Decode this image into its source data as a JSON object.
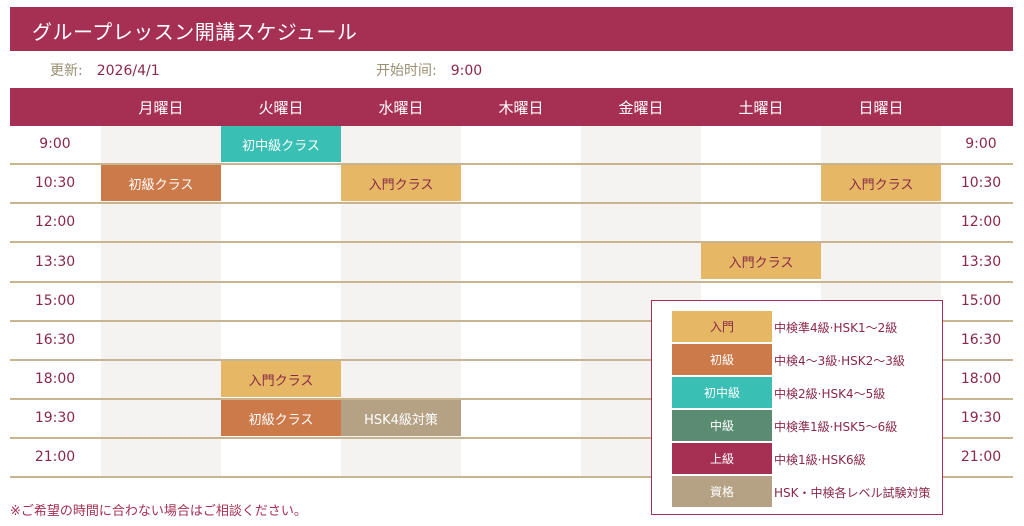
{
  "title": "グループレッスン開講スケジュール",
  "meta": {
    "updated_label": "更新:",
    "updated_value": "2026/4/1",
    "start_label": "开始时间:",
    "start_value": "9:00"
  },
  "days": [
    "月曜日",
    "火曜日",
    "水曜日",
    "木曜日",
    "金曜日",
    "土曜日",
    "日曜日"
  ],
  "times": [
    "9:00",
    "10:30",
    "12:00",
    "13:30",
    "15:00",
    "16:30",
    "18:00",
    "19:30",
    "21:00"
  ],
  "classes": {
    "tue_0900": "初中級クラス",
    "mon_1030": "初級クラス",
    "wed_1030": "入門クラス",
    "sun_1030": "入門クラス",
    "sat_1330": "入門クラス",
    "tue_1800": "入門クラス",
    "tue_1930": "初級クラス",
    "wed_1930": "HSK4級対策"
  },
  "legend": [
    {
      "label": "入門",
      "desc": "中検準4級·HSK1～2級",
      "color": "#e6b866"
    },
    {
      "label": "初級",
      "desc": "中検4～3級·HSK2～3級",
      "color": "#cc7a4a"
    },
    {
      "label": "初中級",
      "desc": "中検2級·HSK4～5級",
      "color": "#3abfb4"
    },
    {
      "label": "中級",
      "desc": "中検準1級·HSK5～6級",
      "color": "#5a8c72"
    },
    {
      "label": "上級",
      "desc": "中検1級·HSK6級",
      "color": "#a63054"
    },
    {
      "label": "資格",
      "desc": "HSK・中検各レベル試験対策",
      "color": "#b5a184"
    }
  ],
  "footer": "※ご希望の時間に合わない場合はご相談ください。"
}
